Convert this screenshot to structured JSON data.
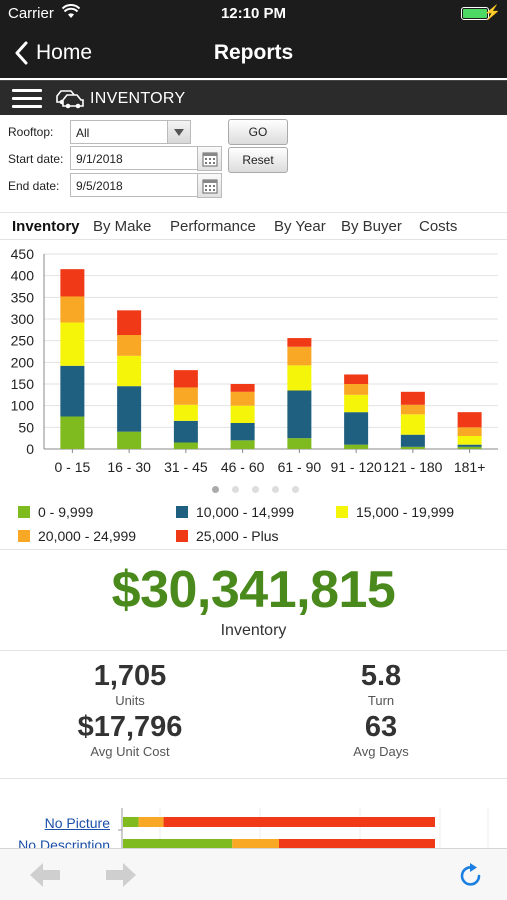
{
  "status_bar": {
    "carrier": "Carrier",
    "time": "12:10 PM"
  },
  "nav": {
    "back_label": "Home",
    "title": "Reports"
  },
  "section": {
    "label": "INVENTORY"
  },
  "filters": {
    "rooftop_label": "Rooftop:",
    "rooftop_value": "All",
    "start_label": "Start date:",
    "start_value": "9/1/2018",
    "end_label": "End date:",
    "end_value": "9/5/2018",
    "go_label": "GO",
    "reset_label": "Reset"
  },
  "tabs": [
    "Inventory",
    "By Make",
    "Performance",
    "By Year",
    "By Buyer",
    "Costs"
  ],
  "active_tab": 0,
  "chart_data": {
    "type": "bar",
    "stacked": true,
    "categories": [
      "0 - 15",
      "16 - 30",
      "31 - 45",
      "46 - 60",
      "61 - 90",
      "91 - 120",
      "121 - 180",
      "181+"
    ],
    "ylim": [
      0,
      450
    ],
    "yticks": [
      0,
      50,
      100,
      150,
      200,
      250,
      300,
      350,
      400,
      450
    ],
    "grid": true,
    "legend_position": "bottom",
    "series": [
      {
        "name": "0 - 9,999",
        "color": "#7fba1f",
        "values": [
          75,
          40,
          15,
          20,
          25,
          10,
          5,
          5
        ]
      },
      {
        "name": "10,000 - 14,999",
        "color": "#1f5f80",
        "values": [
          117,
          105,
          50,
          40,
          110,
          75,
          28,
          5
        ]
      },
      {
        "name": "15,000 - 19,999",
        "color": "#f5f50a",
        "values": [
          100,
          70,
          37,
          40,
          58,
          40,
          47,
          20
        ]
      },
      {
        "name": "20,000 - 24,999",
        "color": "#f9a825",
        "values": [
          60,
          48,
          40,
          32,
          43,
          25,
          22,
          20
        ]
      },
      {
        "name": "25,000 - Plus",
        "color": "#f03a17",
        "values": [
          63,
          57,
          40,
          18,
          20,
          22,
          30,
          35
        ]
      }
    ]
  },
  "summary": {
    "inventory_value": "$30,341,815",
    "inventory_caption": "Inventory",
    "units_value": "1,705",
    "units_caption": "Units",
    "turn_value": "5.8",
    "turn_caption": "Turn",
    "avg_cost_value": "$17,796",
    "avg_cost_caption": "Avg Unit Cost",
    "avg_days_value": "63",
    "avg_days_caption": "Avg Days"
  },
  "mini_chart": {
    "rows": [
      {
        "label": "No Picture",
        "segments": [
          5,
          8,
          87
        ]
      },
      {
        "label": "No Description",
        "segments": [
          35,
          15,
          50
        ]
      }
    ],
    "colors": [
      "#7fba1f",
      "#f9a825",
      "#f03a17"
    ]
  }
}
